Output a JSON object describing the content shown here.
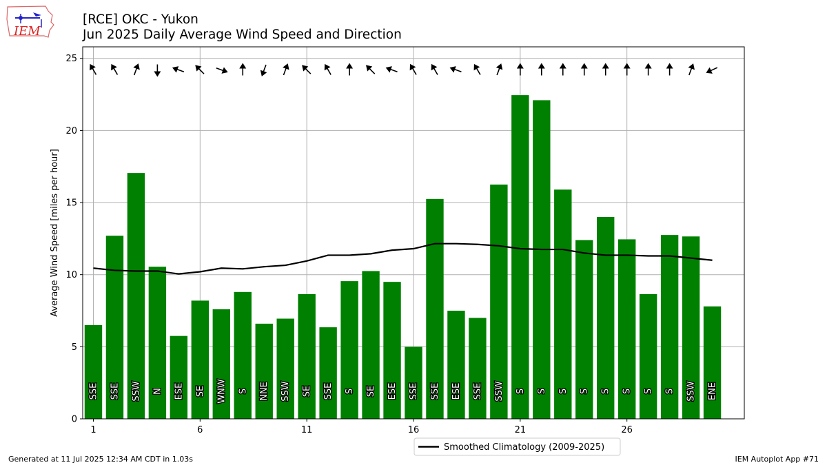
{
  "header": {
    "title_line1": "[RCE] OKC - Yukon",
    "title_line2": "Jun 2025 Daily Average Wind Speed and Direction"
  },
  "logo": {
    "text": "IEM",
    "icon": "iem-iowa-logo-icon"
  },
  "footer": {
    "left": "Generated at 11 Jul 2025 12:34 AM CDT in 1.03s",
    "right": "IEM Autoplot App #71"
  },
  "colors": {
    "bar": "#008000",
    "climo_line": "#000000",
    "grid": "#b0b0b0",
    "arrow": "#000000"
  },
  "chart_data": {
    "type": "bar",
    "title": "[RCE] OKC - Yukon\nJun 2025 Daily Average Wind Speed and Direction",
    "xlabel": "",
    "ylabel": "Average Wind Speed [miles per hour]",
    "xlim": [
      0.5,
      31.5
    ],
    "ylim": [
      0,
      25.8
    ],
    "grid": true,
    "x_ticks": [
      1,
      6,
      11,
      16,
      21,
      26
    ],
    "y_ticks": [
      0,
      5,
      10,
      15,
      20,
      25
    ],
    "days": [
      1,
      2,
      3,
      4,
      5,
      6,
      7,
      8,
      9,
      10,
      11,
      12,
      13,
      14,
      15,
      16,
      17,
      18,
      19,
      20,
      21,
      22,
      23,
      24,
      25,
      26,
      27,
      28,
      29,
      30
    ],
    "series": [
      {
        "type": "bar",
        "values": [
          6.5,
          12.7,
          17.05,
          10.55,
          5.75,
          8.2,
          7.6,
          8.8,
          6.6,
          6.95,
          8.65,
          6.35,
          9.55,
          10.25,
          9.5,
          5.0,
          15.25,
          7.5,
          7.0,
          16.25,
          22.45,
          22.1,
          15.9,
          12.4,
          14.0,
          12.45,
          8.65,
          12.75,
          12.65,
          7.8
        ],
        "direction_labels": [
          "SSE",
          "SSE",
          "SSW",
          "N",
          "ESE",
          "SE",
          "WNW",
          "S",
          "NNE",
          "SSW",
          "SE",
          "SSE",
          "S",
          "SE",
          "ESE",
          "SSE",
          "SSE",
          "ESE",
          "SSE",
          "SSW",
          "S",
          "S",
          "S",
          "S",
          "S",
          "S",
          "S",
          "S",
          "SSW",
          "ENE"
        ]
      },
      {
        "type": "line",
        "name": "Smoothed Climatology (2009-2025)",
        "values": [
          10.45,
          10.3,
          10.25,
          10.25,
          10.05,
          10.2,
          10.45,
          10.4,
          10.55,
          10.65,
          10.95,
          11.35,
          11.35,
          11.45,
          11.7,
          11.8,
          12.15,
          12.15,
          12.1,
          12.0,
          11.8,
          11.75,
          11.75,
          11.5,
          11.35,
          11.35,
          11.3,
          11.3,
          11.15,
          11.0
        ]
      }
    ],
    "wind_direction_deg": [
      150,
      150,
      200,
      0,
      110,
      135,
      290,
      180,
      20,
      200,
      135,
      150,
      180,
      135,
      110,
      150,
      150,
      110,
      150,
      200,
      180,
      180,
      180,
      180,
      180,
      180,
      180,
      180,
      200,
      65
    ],
    "legend": {
      "position": "bottom-center",
      "entries": [
        "Smoothed Climatology (2009-2025)"
      ]
    }
  }
}
